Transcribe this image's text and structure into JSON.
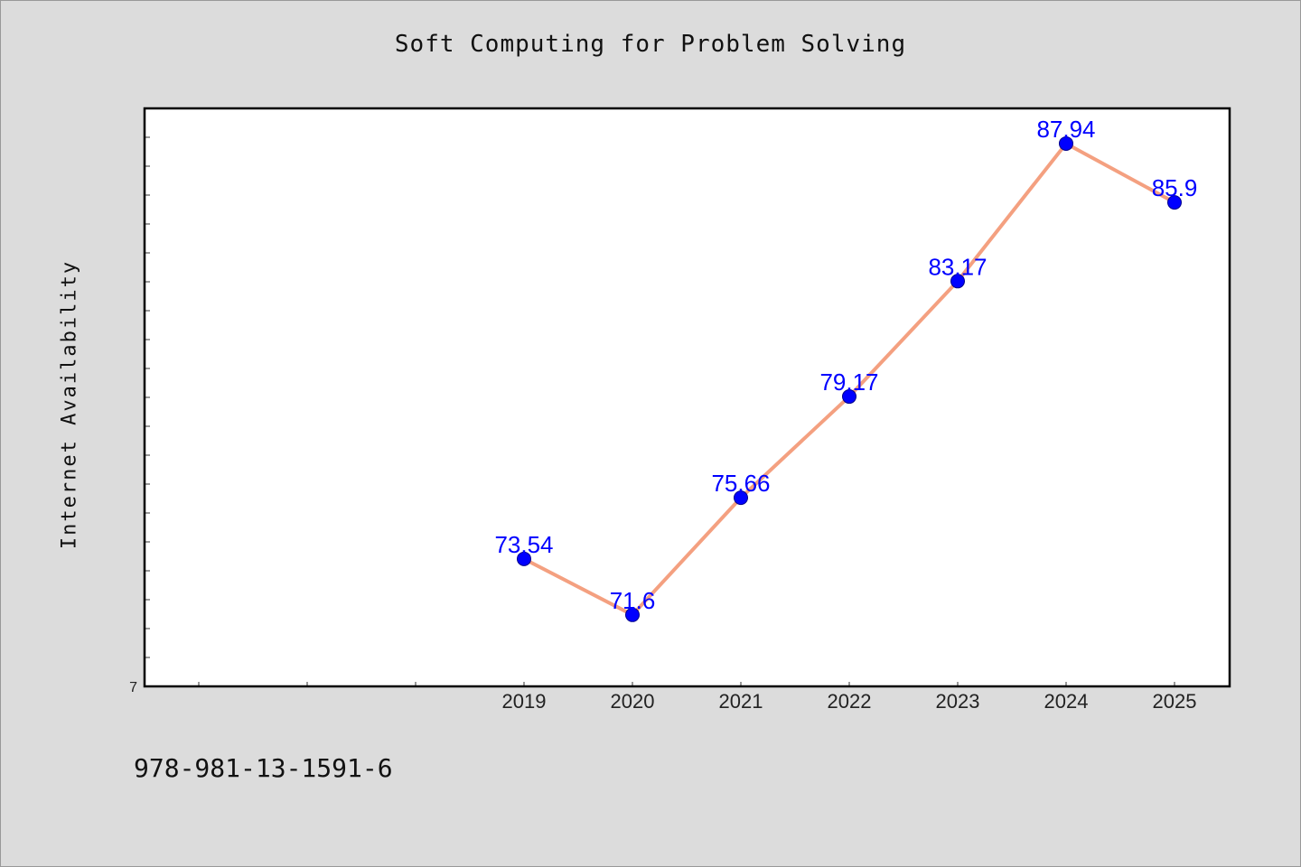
{
  "chart_data": {
    "type": "line",
    "title": "Soft Computing for Problem Solving",
    "xlabel": "",
    "ylabel": "Internet Availability",
    "categories": [
      "2019",
      "2020",
      "2021",
      "2022",
      "2023",
      "2024",
      "2025"
    ],
    "series": [
      {
        "values": [
          73.54,
          71.6,
          75.66,
          79.17,
          83.17,
          87.94,
          85.9
        ],
        "labels": [
          "73.54",
          "71.6",
          "75.66",
          "79.17",
          "83.17",
          "87.94",
          "85.9"
        ]
      }
    ],
    "ylim": [
      69.12,
      89.16
    ],
    "y_min_tick_label": "7",
    "line_color": "#f4a080",
    "marker_color": "#0000ff",
    "label_color": "#0000ff",
    "grid": false,
    "legend": "none"
  },
  "footer": {
    "isbn": "978-981-13-1591-6"
  }
}
